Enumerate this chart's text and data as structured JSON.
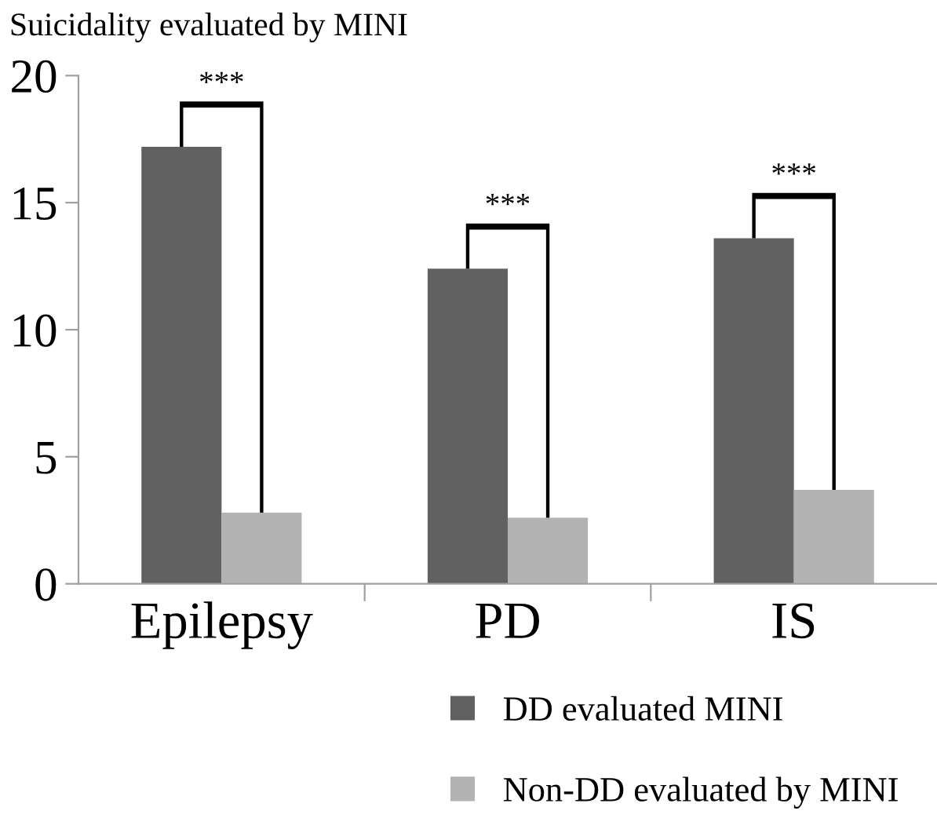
{
  "chart_data": {
    "type": "bar",
    "title": "Suicidality evaluated by MINI",
    "categories": [
      "Epilepsy",
      "PD",
      "IS"
    ],
    "series": [
      {
        "name": "DD evaluated MINI",
        "color": "#616161",
        "values": [
          17.2,
          12.4,
          13.6
        ]
      },
      {
        "name": "Non-DD evaluated by MINI",
        "color": "#b3b3b3",
        "values": [
          2.8,
          2.6,
          3.7
        ]
      }
    ],
    "ylim": [
      0,
      20
    ],
    "yticks": [
      0,
      5,
      10,
      15,
      20
    ],
    "grid": false,
    "legend": "bottom",
    "annotations": [
      "***",
      "***",
      "***"
    ]
  }
}
